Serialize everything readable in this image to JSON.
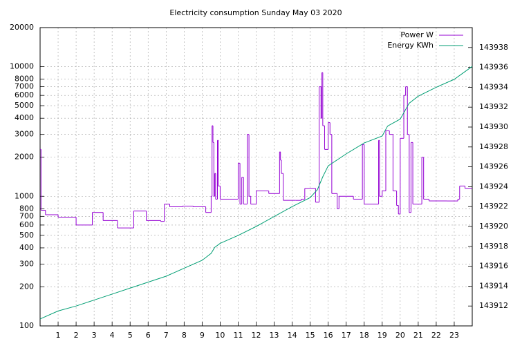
{
  "chart_data": {
    "type": "line",
    "title": "Electricity consumption Sunday May 03 2020",
    "xlim": [
      0,
      24
    ],
    "xticks": [
      1,
      2,
      3,
      4,
      5,
      6,
      7,
      8,
      9,
      10,
      11,
      12,
      13,
      14,
      15,
      16,
      17,
      18,
      19,
      20,
      21,
      22,
      23
    ],
    "ylim": [
      100,
      20000
    ],
    "yticks": [
      100,
      200,
      300,
      400,
      500,
      600,
      700,
      800,
      1000,
      2000,
      3000,
      4000,
      5000,
      6000,
      7000,
      8000,
      10000,
      20000
    ],
    "y_log": true,
    "y2lim": [
      143910,
      143940
    ],
    "y2ticks": [
      143912,
      143914,
      143916,
      143918,
      143920,
      143922,
      143924,
      143926,
      143928,
      143930,
      143932,
      143934,
      143936,
      143938
    ],
    "grid": true,
    "legend": "top-right",
    "series": [
      {
        "name": "Power W",
        "color": "#9400d3",
        "step": true,
        "x": [
          0,
          0.05,
          0.3,
          1.0,
          2.0,
          2.9,
          3.5,
          4.3,
          5.2,
          5.9,
          6.7,
          6.9,
          7.2,
          7.9,
          8.5,
          9.2,
          9.5,
          9.55,
          9.6,
          9.65,
          9.7,
          9.75,
          9.85,
          9.9,
          10.0,
          10.5,
          11.0,
          11.1,
          11.2,
          11.3,
          11.5,
          11.6,
          11.7,
          12.0,
          12.7,
          13.3,
          13.35,
          13.4,
          13.5,
          14.2,
          14.5,
          14.7,
          15.3,
          15.5,
          15.6,
          15.65,
          15.7,
          15.8,
          16.0,
          16.1,
          16.2,
          16.5,
          16.6,
          17.4,
          17.9,
          18.0,
          18.8,
          18.85,
          19.0,
          19.2,
          19.4,
          19.6,
          19.8,
          19.9,
          20.0,
          20.2,
          20.3,
          20.4,
          20.5,
          20.6,
          20.7,
          21.2,
          21.3,
          21.6,
          22.6,
          23.2,
          23.3,
          23.6
        ],
        "values": [
          2300,
          780,
          720,
          690,
          600,
          750,
          650,
          570,
          770,
          650,
          640,
          870,
          830,
          840,
          830,
          750,
          1000,
          3500,
          2600,
          1000,
          1500,
          950,
          2700,
          1200,
          950,
          950,
          1800,
          870,
          1400,
          870,
          3000,
          1000,
          870,
          1100,
          1050,
          2200,
          1900,
          1500,
          930,
          930,
          950,
          1150,
          900,
          7000,
          4000,
          9000,
          3500,
          2300,
          3700,
          3000,
          1050,
          800,
          1000,
          950,
          2500,
          870,
          2700,
          1000,
          1100,
          3200,
          3000,
          1100,
          850,
          730,
          2800,
          6000,
          7000,
          3000,
          750,
          2600,
          870,
          2000,
          950,
          920,
          920,
          950,
          1200,
          1150
        ]
      },
      {
        "name": "Energy KWh",
        "color": "#009e73",
        "axis": "y2",
        "x": [
          0,
          1,
          2,
          3,
          4,
          5,
          6,
          7,
          8,
          9,
          9.5,
          9.7,
          10,
          11,
          12,
          13,
          14,
          15,
          15.4,
          15.7,
          16,
          17,
          18,
          19,
          19.3,
          20,
          20.5,
          21,
          22,
          23,
          24
        ],
        "values": [
          143910.7,
          143911.5,
          143912.0,
          143912.6,
          143913.2,
          143913.8,
          143914.4,
          143915.0,
          143915.8,
          143916.6,
          143917.3,
          143917.9,
          143918.3,
          143919.1,
          143920.0,
          143921.0,
          143922.0,
          143922.9,
          143923.7,
          143925.0,
          143926.1,
          143927.3,
          143928.4,
          143929.1,
          143930.1,
          143930.8,
          143932.4,
          143933.1,
          143934.0,
          143934.8,
          143936.1
        ]
      }
    ]
  }
}
